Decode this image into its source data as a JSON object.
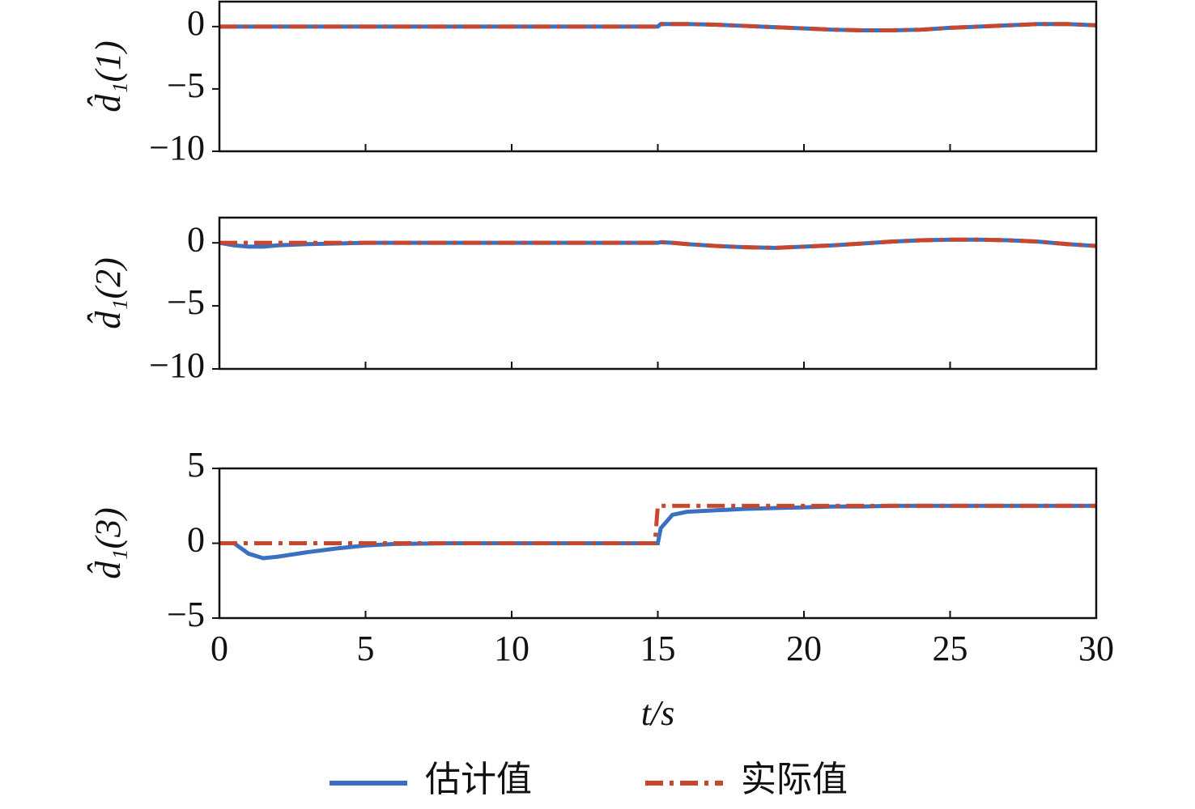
{
  "chart_data": [
    {
      "type": "line",
      "ylabel": "d̂₁(1)",
      "ylim": [
        -10,
        2
      ],
      "yticks": [
        {
          "value": -10,
          "label": "−10"
        },
        {
          "value": -5,
          "label": "−5"
        },
        0
      ],
      "xlim": [
        0,
        30
      ],
      "xticks": [
        0,
        5,
        10,
        15,
        20,
        25,
        30
      ],
      "x": [
        0,
        0.5,
        1,
        1.5,
        2,
        3,
        4,
        5,
        6,
        8,
        10,
        12,
        14,
        14.9,
        15,
        15.1,
        15.5,
        16,
        17,
        18,
        19,
        20,
        21,
        22,
        23,
        24,
        25,
        26,
        27,
        28,
        29,
        30
      ],
      "series": [
        {
          "color": "#3b6fbf",
          "style": "solid",
          "values": [
            0,
            0,
            0,
            0,
            0,
            0,
            0,
            0,
            0,
            0,
            0,
            0,
            0,
            0,
            0,
            0.2,
            0.2,
            0.2,
            0.15,
            0.05,
            -0.05,
            -0.15,
            -0.25,
            -0.3,
            -0.3,
            -0.25,
            -0.1,
            0,
            0.1,
            0.2,
            0.2,
            0.1
          ]
        },
        {
          "color": "#c8452e",
          "style": "dashdot",
          "values": [
            0,
            0,
            0,
            0,
            0,
            0,
            0,
            0,
            0,
            0,
            0,
            0,
            0,
            0,
            0.2,
            0.2,
            0.2,
            0.2,
            0.15,
            0.05,
            -0.05,
            -0.15,
            -0.25,
            -0.3,
            -0.3,
            -0.25,
            -0.1,
            0,
            0.1,
            0.2,
            0.2,
            0.1
          ]
        }
      ]
    },
    {
      "type": "line",
      "ylabel": "d̂₁(2)",
      "ylim": [
        -10,
        2
      ],
      "yticks": [
        {
          "value": -10,
          "label": "−10"
        },
        {
          "value": -5,
          "label": "−5"
        },
        0
      ],
      "xlim": [
        0,
        30
      ],
      "xticks": [
        0,
        5,
        10,
        15,
        20,
        25,
        30
      ],
      "x": [
        0,
        0.5,
        1,
        1.5,
        2,
        3,
        4,
        5,
        6,
        8,
        10,
        12,
        14,
        14.9,
        15,
        15.1,
        15.5,
        16,
        17,
        18,
        19,
        20,
        21,
        22,
        23,
        24,
        25,
        26,
        27,
        28,
        29,
        30
      ],
      "series": [
        {
          "color": "#3b6fbf",
          "style": "solid",
          "values": [
            0,
            -0.2,
            -0.3,
            -0.3,
            -0.2,
            -0.1,
            -0.05,
            0,
            0,
            0,
            0,
            0,
            0,
            0,
            0,
            0.05,
            0,
            -0.1,
            -0.25,
            -0.35,
            -0.4,
            -0.3,
            -0.2,
            -0.05,
            0.1,
            0.2,
            0.25,
            0.25,
            0.2,
            0.1,
            -0.1,
            -0.25
          ]
        },
        {
          "color": "#c8452e",
          "style": "dashdot",
          "values": [
            0,
            0,
            0,
            0,
            0,
            0,
            0,
            0,
            0,
            0,
            0,
            0,
            0,
            0,
            0,
            0.05,
            0,
            -0.1,
            -0.25,
            -0.35,
            -0.4,
            -0.3,
            -0.2,
            -0.05,
            0.1,
            0.2,
            0.25,
            0.25,
            0.2,
            0.1,
            -0.1,
            -0.25
          ]
        }
      ]
    },
    {
      "type": "line",
      "ylabel": "d̂₁(3)",
      "ylim": [
        -5,
        5
      ],
      "yticks": [
        {
          "value": -5,
          "label": "−5"
        },
        0,
        5
      ],
      "xlim": [
        0,
        30
      ],
      "xticks": [
        0,
        5,
        10,
        15,
        20,
        25,
        30
      ],
      "xlabel": "t/s",
      "x": [
        0,
        0.5,
        1,
        1.5,
        2,
        3,
        4,
        5,
        6,
        8,
        10,
        12,
        14,
        14.9,
        15,
        15.1,
        15.5,
        16,
        17,
        18,
        19,
        20,
        21,
        22,
        23,
        24,
        25,
        26,
        27,
        28,
        29,
        30
      ],
      "series": [
        {
          "name": "估计值",
          "color": "#3b6fbf",
          "style": "solid",
          "values": [
            0,
            0,
            -0.7,
            -1.0,
            -0.9,
            -0.6,
            -0.35,
            -0.15,
            -0.05,
            0,
            0,
            0,
            0,
            0,
            0,
            1.0,
            1.9,
            2.1,
            2.2,
            2.3,
            2.35,
            2.4,
            2.45,
            2.45,
            2.5,
            2.5,
            2.5,
            2.5,
            2.5,
            2.5,
            2.5,
            2.5
          ]
        },
        {
          "name": "实际值",
          "color": "#c8452e",
          "style": "dashdot",
          "values": [
            0,
            0,
            0,
            0,
            0,
            0,
            0,
            0,
            0,
            0,
            0,
            0,
            0,
            0,
            2.5,
            2.5,
            2.5,
            2.5,
            2.5,
            2.5,
            2.5,
            2.5,
            2.5,
            2.5,
            2.5,
            2.5,
            2.5,
            2.5,
            2.5,
            2.5,
            2.5,
            2.5
          ]
        }
      ]
    }
  ]
}
